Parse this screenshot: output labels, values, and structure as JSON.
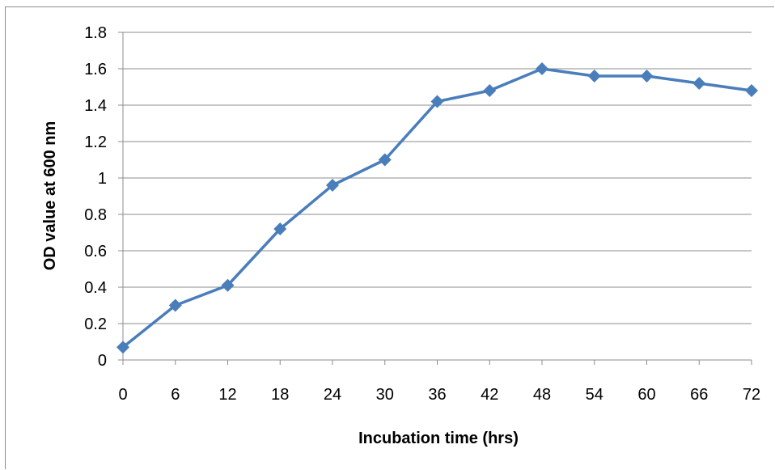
{
  "colors": {
    "series": "#4a7ebb",
    "gridline": "#8c8c8c",
    "axis": "#8c8c8c"
  },
  "chart_data": {
    "type": "line",
    "title": "",
    "xlabel": "Incubation time (hrs)",
    "ylabel": "OD value at 600 nm",
    "x": [
      0,
      6,
      12,
      18,
      24,
      30,
      36,
      42,
      48,
      54,
      60,
      66,
      72
    ],
    "x_tick_labels": [
      "0",
      "6",
      "12",
      "18",
      "24",
      "30",
      "36",
      "42",
      "48",
      "54",
      "60",
      "66",
      "72"
    ],
    "y_tick_labels": [
      "0",
      "0.2",
      "0.4",
      "0.6",
      "0.8",
      "1",
      "1.2",
      "1.4",
      "1.6",
      "1.8"
    ],
    "ylim": [
      0,
      1.8
    ],
    "grid": "horizontal",
    "legend": "none",
    "marker": "diamond",
    "series": [
      {
        "values": [
          0.07,
          0.3,
          0.41,
          0.72,
          0.96,
          1.1,
          1.42,
          1.48,
          1.6,
          1.56,
          1.56,
          1.52,
          1.48
        ]
      }
    ]
  }
}
